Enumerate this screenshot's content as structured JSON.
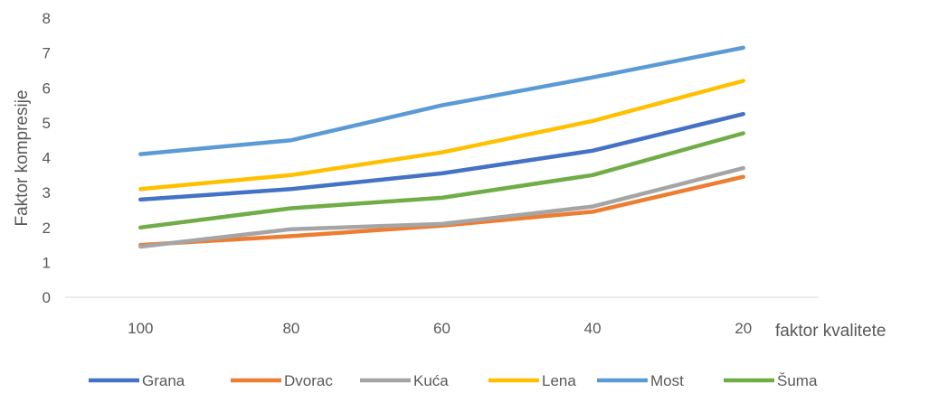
{
  "chart_data": {
    "type": "line",
    "title": "",
    "xlabel": "faktor kvalitete",
    "ylabel": "Faktor kompresije",
    "categories": [
      "100",
      "80",
      "60",
      "40",
      "20"
    ],
    "ylim": [
      0,
      8
    ],
    "yticks": [
      "0",
      "1",
      "2",
      "3",
      "4",
      "5",
      "6",
      "7",
      "8"
    ],
    "grid": false,
    "legend_position": "bottom",
    "series": [
      {
        "name": "Grana",
        "color": "#4472C4",
        "values": [
          2.8,
          3.1,
          3.55,
          4.2,
          5.25
        ]
      },
      {
        "name": "Dvorac",
        "color": "#ED7D31",
        "values": [
          1.5,
          1.75,
          2.05,
          2.45,
          3.45
        ]
      },
      {
        "name": "Kuća",
        "color": "#A5A5A5",
        "values": [
          1.45,
          1.95,
          2.1,
          2.6,
          3.7
        ]
      },
      {
        "name": "Lena",
        "color": "#FFC000",
        "values": [
          3.1,
          3.5,
          4.15,
          5.05,
          6.2
        ]
      },
      {
        "name": "Most",
        "color": "#5B9BD5",
        "values": [
          4.1,
          4.5,
          5.5,
          6.3,
          7.15
        ]
      },
      {
        "name": "Šuma",
        "color": "#70AD47",
        "values": [
          2.0,
          2.55,
          2.85,
          3.5,
          4.7
        ]
      }
    ]
  }
}
